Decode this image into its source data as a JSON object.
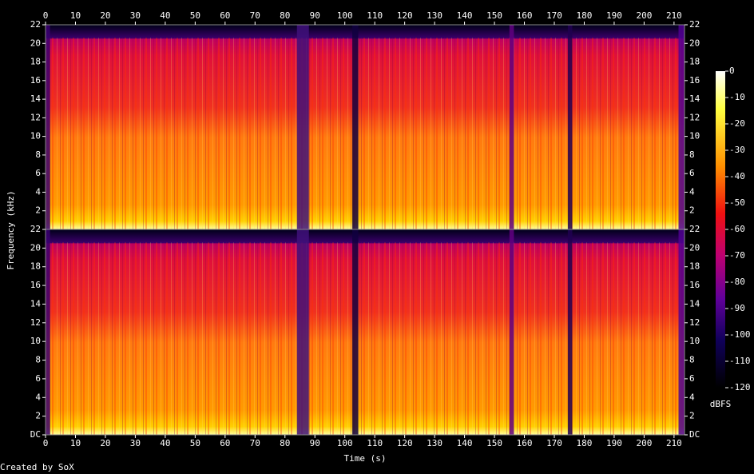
{
  "chart_data": [
    {
      "type": "spectrogram",
      "y_label": "Frequency (kHz)",
      "xlim": [
        0,
        213.5
      ],
      "xticks": [
        0,
        10,
        20,
        30,
        40,
        50,
        60,
        70,
        80,
        90,
        100,
        110,
        120,
        130,
        140,
        150,
        160,
        170,
        180,
        190,
        200,
        210
      ],
      "ylim": [
        0,
        22
      ],
      "yticks": [
        2,
        4,
        6,
        8,
        10,
        12,
        14,
        16,
        18,
        20,
        22
      ]
    },
    {
      "type": "spectrogram",
      "x_label": "Time (s)",
      "xlim": [
        0,
        213.5
      ],
      "xticks": [
        0,
        10,
        20,
        30,
        40,
        50,
        60,
        70,
        80,
        90,
        100,
        110,
        120,
        130,
        140,
        150,
        160,
        170,
        180,
        190,
        200,
        210
      ],
      "ylim": [
        0,
        22
      ],
      "yticks": [
        {
          "value": 0,
          "label": "DC"
        },
        2,
        4,
        6,
        8,
        10,
        12,
        14,
        16,
        18,
        20,
        22
      ]
    }
  ],
  "colorbar": {
    "label": "dBFS",
    "lim": [
      -120,
      0
    ],
    "ticks": [
      0,
      -10,
      -20,
      -30,
      -40,
      -50,
      -60,
      -70,
      -80,
      -90,
      -100,
      -110,
      -120
    ]
  },
  "footer": "Created by SoX"
}
